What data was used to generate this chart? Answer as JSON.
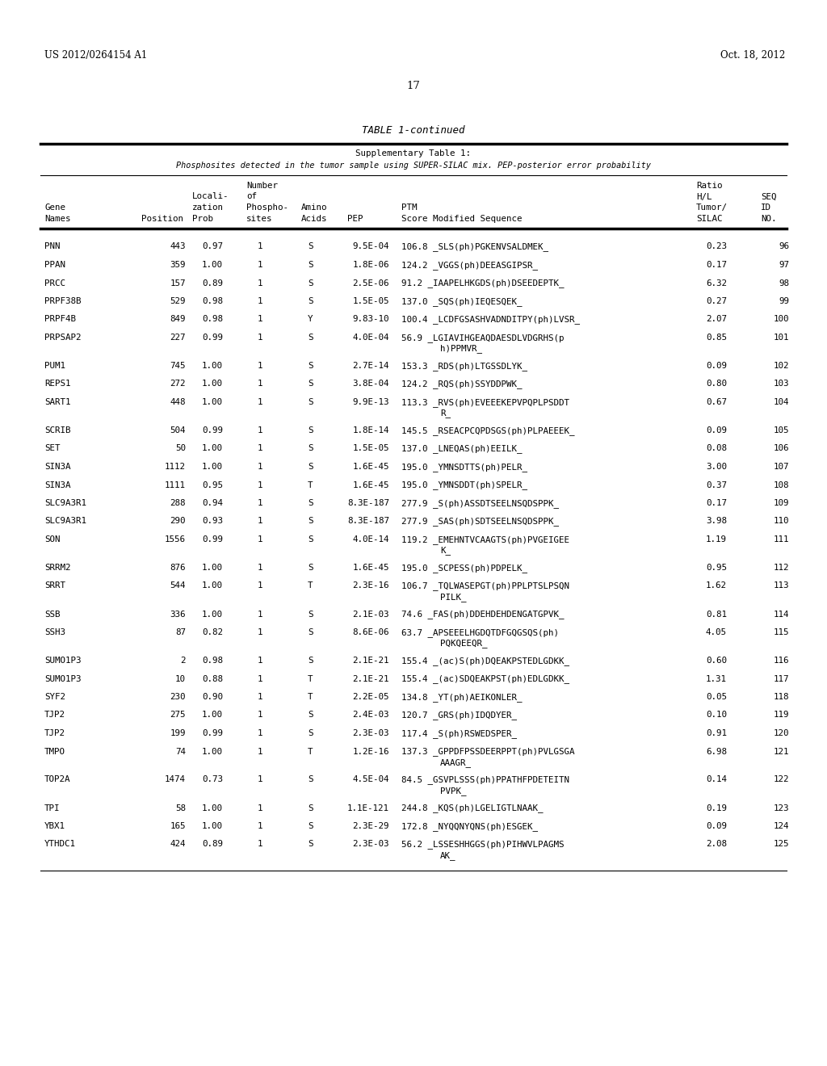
{
  "header_left": "US 2012/0264154 A1",
  "header_right": "Oct. 18, 2012",
  "page_number": "17",
  "table_title": "TABLE 1-continued",
  "subtitle1": "Supplementary Table 1:",
  "subtitle2": "Phosphosites detected in the tumor sample using SUPER-SILAC mix. PEP-posterior error probability",
  "rows": [
    [
      "PNN",
      "443",
      "0.97",
      "1",
      "S",
      "9.5E-04",
      "106.8",
      "_SLS(ph)PGKENVSALDMEK_",
      "0.23",
      "96",
      false
    ],
    [
      "PPAN",
      "359",
      "1.00",
      "1",
      "S",
      "1.8E-06",
      "124.2",
      "_VGGS(ph)DEEASGIPSR_",
      "0.17",
      "97",
      false
    ],
    [
      "PRCC",
      "157",
      "0.89",
      "1",
      "S",
      "2.5E-06",
      "91.2",
      "_IAAPELHKGDS(ph)DSEEDEPTK_",
      "6.32",
      "98",
      false
    ],
    [
      "PRPF38B",
      "529",
      "0.98",
      "1",
      "S",
      "1.5E-05",
      "137.0",
      "_SQS(ph)IEQESQEK_",
      "0.27",
      "99",
      false
    ],
    [
      "PRPF4B",
      "849",
      "0.98",
      "1",
      "Y",
      "9.83-10",
      "100.4",
      "_LCDFGSASHVADNDITPY(ph)LVSR_",
      "2.07",
      "100",
      false
    ],
    [
      "PRPSAP2",
      "227",
      "0.99",
      "1",
      "S",
      "4.0E-04",
      "56.9",
      "_LGIAVIHGEAQDAESDLVDGRHS(p",
      "0.85",
      "101",
      true
    ],
    [
      "PUM1",
      "745",
      "1.00",
      "1",
      "S",
      "2.7E-14",
      "153.3",
      "_RDS(ph)LTGSSDLYK_",
      "0.09",
      "102",
      false
    ],
    [
      "REPS1",
      "272",
      "1.00",
      "1",
      "S",
      "3.8E-04",
      "124.2",
      "_RQS(ph)SSYDDPWK_",
      "0.80",
      "103",
      false
    ],
    [
      "SART1",
      "448",
      "1.00",
      "1",
      "S",
      "9.9E-13",
      "113.3",
      "_RVS(ph)EVEEEKEPVPQPLPSDDT",
      "0.67",
      "104",
      true
    ],
    [
      "SCRIB",
      "504",
      "0.99",
      "1",
      "S",
      "1.8E-14",
      "145.5",
      "_RSEACPCQPDSGS(ph)PLPAEEEK_",
      "0.09",
      "105",
      false
    ],
    [
      "SET",
      "50",
      "1.00",
      "1",
      "S",
      "1.5E-05",
      "137.0",
      "_LNEQAS(ph)EEILK_",
      "0.08",
      "106",
      false
    ],
    [
      "SIN3A",
      "1112",
      "1.00",
      "1",
      "S",
      "1.6E-45",
      "195.0",
      "_YMNSDTTS(ph)PELR_",
      "3.00",
      "107",
      false
    ],
    [
      "SIN3A",
      "1111",
      "0.95",
      "1",
      "T",
      "1.6E-45",
      "195.0",
      "_YMNSDDT(ph)SPELR_",
      "0.37",
      "108",
      false
    ],
    [
      "SLC9A3R1",
      "288",
      "0.94",
      "1",
      "S",
      "8.3E-187",
      "277.9",
      "_S(ph)ASSDTSEELNSQDSPPK_",
      "0.17",
      "109",
      false
    ],
    [
      "SLC9A3R1",
      "290",
      "0.93",
      "1",
      "S",
      "8.3E-187",
      "277.9",
      "_SAS(ph)SDTSEELNSQDSPPK_",
      "3.98",
      "110",
      false
    ],
    [
      "SON",
      "1556",
      "0.99",
      "1",
      "S",
      "4.0E-14",
      "119.2",
      "_EMEHNTVCAAGTS(ph)PVGEIGEE",
      "1.19",
      "111",
      true
    ],
    [
      "SRRM2",
      "876",
      "1.00",
      "1",
      "S",
      "1.6E-45",
      "195.0",
      "_SCPESS(ph)PDPELK_",
      "0.95",
      "112",
      false
    ],
    [
      "SRRT",
      "544",
      "1.00",
      "1",
      "T",
      "2.3E-16",
      "106.7",
      "_TQLWASEPGT(ph)PPLPTSLPSQN",
      "1.62",
      "113",
      true
    ],
    [
      "SSB",
      "336",
      "1.00",
      "1",
      "S",
      "2.1E-03",
      "74.6",
      "_FAS(ph)DDEHDEHDENGATGPVK_",
      "0.81",
      "114",
      false
    ],
    [
      "SSH3",
      "87",
      "0.82",
      "1",
      "S",
      "8.6E-06",
      "63.7",
      "_APSEEELHGDQTDFGQGSQS(ph)",
      "4.05",
      "115",
      true
    ],
    [
      "SUMO1P3",
      "2",
      "0.98",
      "1",
      "S",
      "2.1E-21",
      "155.4",
      "_(ac)S(ph)DQEAKPSTEDLGDKK_",
      "0.60",
      "116",
      false
    ],
    [
      "SUMO1P3",
      "10",
      "0.88",
      "1",
      "T",
      "2.1E-21",
      "155.4",
      "_(ac)SDQEAKPST(ph)EDLGDKK_",
      "1.31",
      "117",
      false
    ],
    [
      "SYF2",
      "230",
      "0.90",
      "1",
      "T",
      "2.2E-05",
      "134.8",
      "_YT(ph)AEIKONLER_",
      "0.05",
      "118",
      false
    ],
    [
      "TJP2",
      "275",
      "1.00",
      "1",
      "S",
      "2.4E-03",
      "120.7",
      "_GRS(ph)IDQDYER_",
      "0.10",
      "119",
      false
    ],
    [
      "TJP2",
      "199",
      "0.99",
      "1",
      "S",
      "2.3E-03",
      "117.4",
      "_S(ph)RSWEDSPER_",
      "0.91",
      "120",
      false
    ],
    [
      "TMPO",
      "74",
      "1.00",
      "1",
      "T",
      "1.2E-16",
      "137.3",
      "_GPPDFPSSDEERPPT(ph)PVLGSGA",
      "6.98",
      "121",
      true
    ],
    [
      "TOP2A",
      "1474",
      "0.73",
      "1",
      "S",
      "4.5E-04",
      "84.5",
      "_GSVPLSSS(ph)PPATHFPDETEITN",
      "0.14",
      "122",
      true
    ],
    [
      "TPI",
      "58",
      "1.00",
      "1",
      "S",
      "1.1E-121",
      "244.8",
      "_KQS(ph)LGELIGTLNAAK_",
      "0.19",
      "123",
      false
    ],
    [
      "YBX1",
      "165",
      "1.00",
      "1",
      "S",
      "2.3E-29",
      "172.8",
      "_NYQQNYQNS(ph)ESGEK_",
      "0.09",
      "124",
      false
    ],
    [
      "YTHDC1",
      "424",
      "0.89",
      "1",
      "S",
      "2.3E-03",
      "56.2",
      "_LSSESHHGGS(ph)PIHWVLPAGMS",
      "2.08",
      "125",
      true
    ]
  ],
  "row2_lines": {
    "5": "h)PPMVR_",
    "8": "R_",
    "15": "K_",
    "17": "PILK_",
    "19": "PQKQEEQR_",
    "25": "AAAGR_",
    "26": "PVPK_",
    "29": "AK_"
  }
}
